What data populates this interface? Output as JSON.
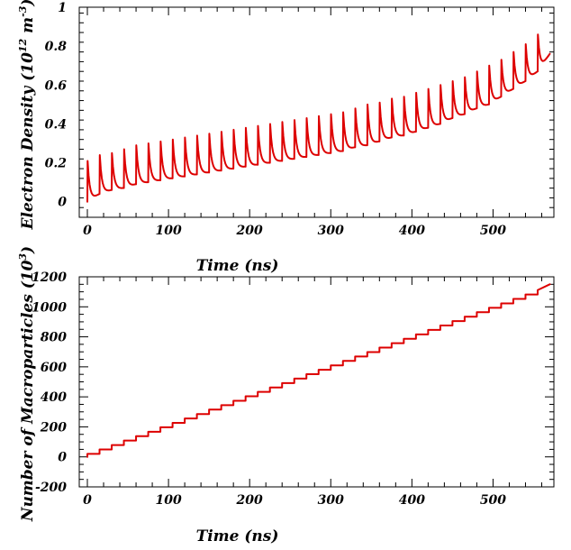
{
  "chart_data": [
    {
      "type": "line",
      "xlabel": "Time (ns)",
      "ylabel": "Electron Density (10",
      "ylabel_exp1": "12",
      "ylabel_mid": " m",
      "ylabel_exp2": "-3",
      "ylabel_end": ")",
      "xlim": [
        -10,
        575
      ],
      "ylim": [
        -0.08,
        1.0
      ],
      "xticks": [
        0,
        100,
        200,
        300,
        400,
        500
      ],
      "yticks": [
        0,
        0.2,
        0.4,
        0.6,
        0.8,
        1
      ],
      "ytick_labels": [
        "0",
        "0.2",
        "0.4",
        "0.6",
        "0.8",
        "1"
      ],
      "grid": false,
      "series": [
        {
          "color": "#dd0000",
          "description": "sawtooth: density jumps at each injection then decays to a rising baseline",
          "pulse_period_ns": 15,
          "pulse_times": [
            0,
            15,
            30,
            45,
            60,
            75,
            90,
            105,
            120,
            135,
            150,
            165,
            180,
            195,
            210,
            225,
            240,
            255,
            270,
            285,
            300,
            315,
            330,
            345,
            360,
            375,
            390,
            405,
            420,
            435,
            450,
            465,
            480,
            495,
            510,
            525,
            540,
            555
          ],
          "peaks": [
            0.21,
            0.24,
            0.25,
            0.27,
            0.29,
            0.3,
            0.31,
            0.32,
            0.33,
            0.34,
            0.35,
            0.36,
            0.37,
            0.38,
            0.39,
            0.4,
            0.41,
            0.42,
            0.43,
            0.44,
            0.45,
            0.46,
            0.48,
            0.5,
            0.51,
            0.53,
            0.54,
            0.56,
            0.58,
            0.6,
            0.62,
            0.64,
            0.67,
            0.7,
            0.73,
            0.77,
            0.81,
            0.86
          ],
          "baseline_before": [
            0.0,
            0.04,
            0.06,
            0.07,
            0.09,
            0.1,
            0.11,
            0.12,
            0.13,
            0.14,
            0.15,
            0.16,
            0.17,
            0.18,
            0.19,
            0.2,
            0.21,
            0.22,
            0.23,
            0.24,
            0.25,
            0.26,
            0.28,
            0.29,
            0.31,
            0.33,
            0.34,
            0.36,
            0.38,
            0.4,
            0.43,
            0.45,
            0.48,
            0.5,
            0.54,
            0.58,
            0.62,
            0.67
          ],
          "end": {
            "x": 570,
            "y": 0.76
          }
        }
      ]
    },
    {
      "type": "line",
      "xlabel": "Time (ns)",
      "ylabel": "Number of Macroparticles (10",
      "ylabel_exp1": "3",
      "ylabel_end": ")",
      "xlim": [
        -10,
        575
      ],
      "ylim": [
        -200,
        1200
      ],
      "xticks": [
        0,
        100,
        200,
        300,
        400,
        500
      ],
      "yticks": [
        -200,
        0,
        200,
        400,
        600,
        800,
        1000,
        1200
      ],
      "grid": false,
      "series": [
        {
          "color": "#dd0000",
          "description": "staircase: step up of about 30 thousand every 15 ns",
          "step_period_ns": 15,
          "step_start": 0,
          "start_value": 20,
          "step_size": 29.5,
          "end": {
            "x": 570,
            "y": 1150
          }
        }
      ]
    }
  ]
}
